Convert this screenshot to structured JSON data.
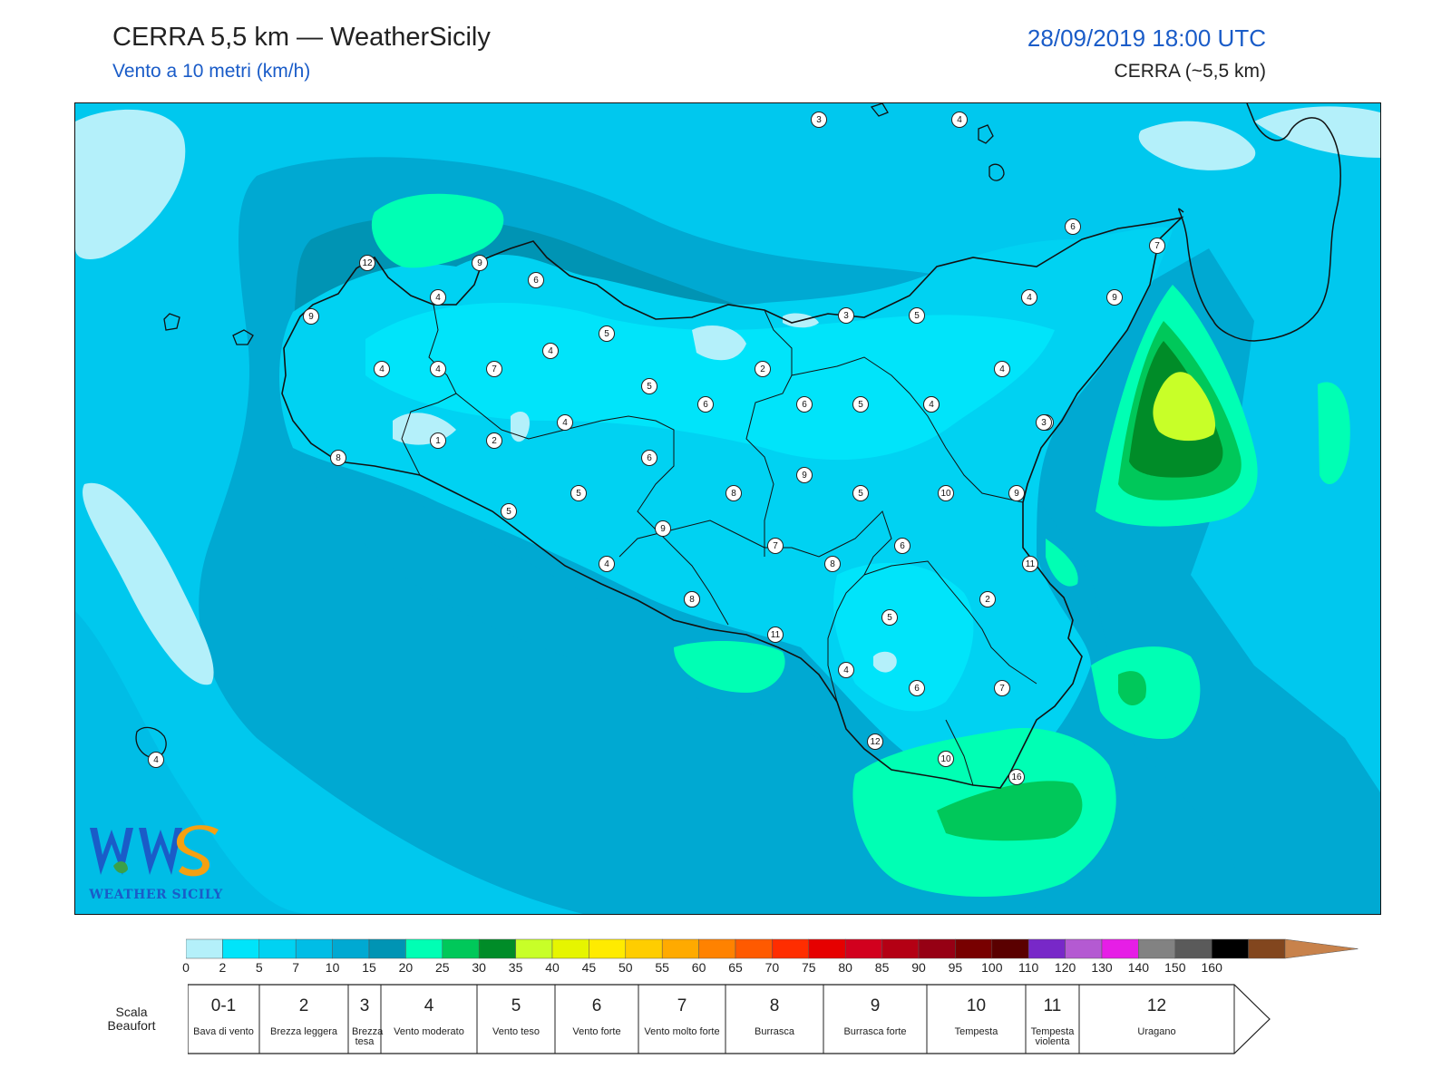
{
  "header": {
    "title": "CERRA 5,5 km — WeatherSicily",
    "subtitle": "Vento a 10 metri (km/h)",
    "datetime": "28/09/2019 18:00 UTC",
    "model": "CERRA (~5,5 km)"
  },
  "colors": {
    "bins": [
      "#b4f0fa",
      "#00e4fa",
      "#00d2f2",
      "#00bde6",
      "#00a9d2",
      "#0094b4",
      "#00ffb4",
      "#00c85a",
      "#008c28",
      "#c8ff28",
      "#e6f500",
      "#ffeb00",
      "#ffcd00",
      "#ffaa00",
      "#ff8200",
      "#ff5a00",
      "#ff2d00",
      "#e60000",
      "#d2001e",
      "#b40014",
      "#960014",
      "#780000",
      "#5a0000",
      "#7828c8",
      "#b45ad2",
      "#e61ee6",
      "#828282",
      "#5a5a5a",
      "#000000",
      "#82461e",
      "#c8824b"
    ],
    "ticks": [
      "0",
      "2",
      "5",
      "7",
      "10",
      "15",
      "20",
      "25",
      "30",
      "35",
      "40",
      "45",
      "50",
      "55",
      "60",
      "65",
      "70",
      "75",
      "80",
      "85",
      "90",
      "95",
      "100",
      "110",
      "120",
      "130",
      "140",
      "150",
      "160"
    ]
  },
  "beaufort": {
    "title": "Scala Beaufort",
    "levels": [
      {
        "num": "0-1",
        "desc": "Bava di vento"
      },
      {
        "num": "2",
        "desc": "Brezza leggera"
      },
      {
        "num": "3",
        "desc": "Brezza tesa"
      },
      {
        "num": "4",
        "desc": "Vento moderato"
      },
      {
        "num": "5",
        "desc": "Vento teso"
      },
      {
        "num": "6",
        "desc": "Vento forte"
      },
      {
        "num": "7",
        "desc": "Vento molto forte"
      },
      {
        "num": "8",
        "desc": "Burrasca"
      },
      {
        "num": "9",
        "desc": "Burrasca forte"
      },
      {
        "num": "10",
        "desc": "Tempesta"
      },
      {
        "num": "11",
        "desc": "Tempesta violenta"
      },
      {
        "num": "12",
        "desc": "Uragano"
      }
    ]
  },
  "stations": [
    "3",
    "4",
    "6",
    "7",
    "12",
    "9",
    "6",
    "4",
    "3",
    "5",
    "4",
    "9",
    "9",
    "4",
    "4",
    "7",
    "4",
    "5",
    "4",
    "2",
    "5",
    "6",
    "6",
    "5",
    "4",
    "7",
    "9",
    "1",
    "2",
    "4",
    "6",
    "4",
    "3",
    "8",
    "8",
    "9",
    "5",
    "10",
    "9",
    "5",
    "5",
    "8",
    "7",
    "6",
    "8",
    "4",
    "11",
    "8",
    "2",
    "5",
    "11",
    "4",
    "6",
    "7",
    "12",
    "10",
    "16",
    "4"
  ],
  "logo": {
    "text": "WEATHER SICILY"
  }
}
